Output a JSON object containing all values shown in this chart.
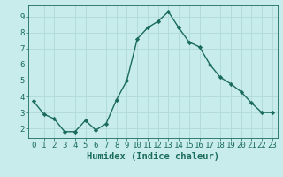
{
  "x": [
    0,
    1,
    2,
    3,
    4,
    5,
    6,
    7,
    8,
    9,
    10,
    11,
    12,
    13,
    14,
    15,
    16,
    17,
    18,
    19,
    20,
    21,
    22,
    23
  ],
  "y": [
    3.7,
    2.9,
    2.6,
    1.8,
    1.8,
    2.5,
    1.9,
    2.3,
    3.8,
    5.0,
    7.6,
    8.3,
    8.7,
    9.3,
    8.3,
    7.4,
    7.1,
    6.0,
    5.2,
    4.8,
    4.3,
    3.6,
    3.0,
    3.0
  ],
  "line_color": "#1a6b5a",
  "marker": "D",
  "marker_size": 2.2,
  "bg_color": "#c8ecec",
  "grid_color": "#b0d8d8",
  "xlabel": "Humidex (Indice chaleur)",
  "xlim": [
    -0.5,
    23.5
  ],
  "ylim": [
    1.4,
    9.7
  ],
  "yticks": [
    2,
    3,
    4,
    5,
    6,
    7,
    8,
    9
  ],
  "xticks": [
    0,
    1,
    2,
    3,
    4,
    5,
    6,
    7,
    8,
    9,
    10,
    11,
    12,
    13,
    14,
    15,
    16,
    17,
    18,
    19,
    20,
    21,
    22,
    23
  ],
  "tick_fontsize": 6.5,
  "xlabel_fontsize": 7.5,
  "axis_color": "#1a6b5a",
  "linewidth": 1.0
}
